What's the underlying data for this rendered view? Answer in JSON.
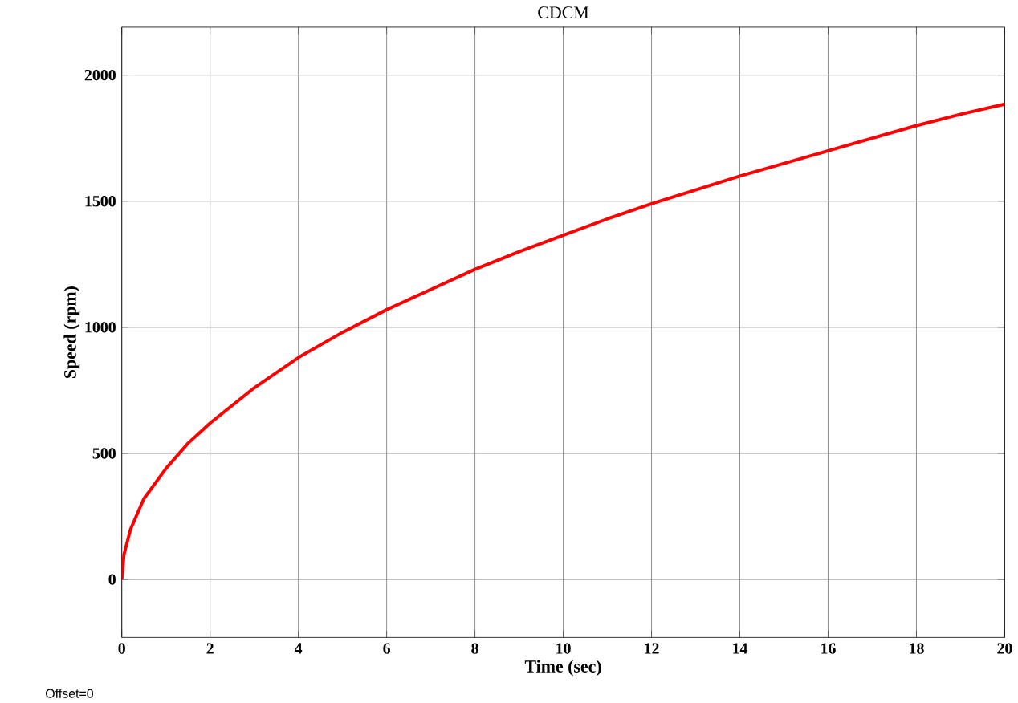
{
  "chart_data": {
    "type": "line",
    "title": "CDCM",
    "xlabel": "Time (sec)",
    "ylabel": "Speed (rpm)",
    "annotations": [
      "Offset=0"
    ],
    "xlim": [
      0,
      20
    ],
    "ylim": [
      -230,
      2190
    ],
    "xticks": [
      0,
      2,
      4,
      6,
      8,
      10,
      12,
      14,
      16,
      18,
      20
    ],
    "yticks": [
      0,
      500,
      1000,
      1500,
      2000
    ],
    "grid": true,
    "series": [
      {
        "color": "#ff0000",
        "x": [
          0,
          0.05,
          0.2,
          0.5,
          1,
          1.5,
          2,
          3,
          4,
          5,
          6,
          7,
          8,
          9,
          10,
          11,
          12,
          13,
          14,
          15,
          16,
          17,
          18,
          19,
          20
        ],
        "values": [
          0,
          100,
          200,
          320,
          440,
          540,
          620,
          760,
          880,
          980,
          1070,
          1150,
          1230,
          1300,
          1365,
          1430,
          1490,
          1545,
          1600,
          1650,
          1700,
          1750,
          1800,
          1845,
          1885
        ]
      }
    ]
  }
}
